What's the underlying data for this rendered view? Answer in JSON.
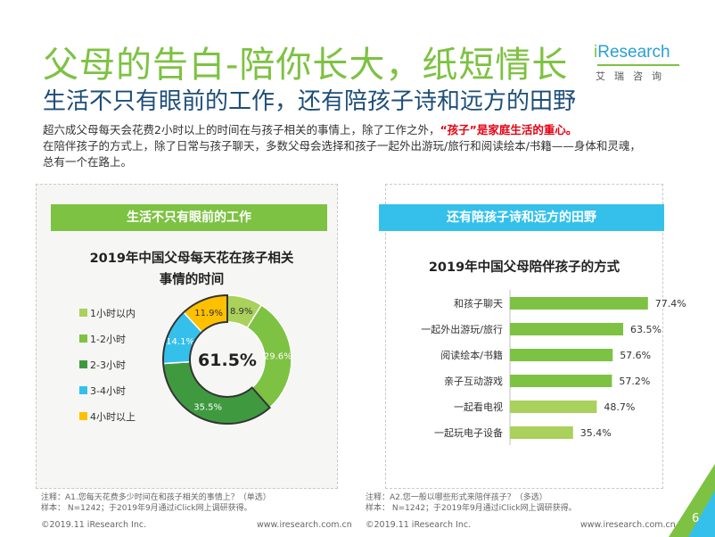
{
  "header": {
    "title": "父母的告白-陪你长大，纸短情长",
    "subtitle": "生活不只有眼前的工作，还有陪孩子诗和远方的田野"
  },
  "logo": {
    "name_i": "i",
    "name_rest": "Research",
    "name_cn": "艾瑞咨询"
  },
  "intro": {
    "line1_text": "超六成父母每天会花费2小时以上的时间在与孩子相关的事情上，除了工作之外，",
    "line1_highlight": "“孩子”是家庭生活的重心。",
    "line2": "在陪伴孩子的方式上，除了日常与孩子聊天，多数父母会选择和孩子一起外出游玩/旅行和阅读绘本/书籍——身体和灵魂，",
    "line3": "总有一个在路上。"
  },
  "panels": {
    "left_banner": "生活不只有眼前的工作",
    "right_banner": "还有陪孩子诗和远方的田野"
  },
  "colors": {
    "green": "#7dc242",
    "dark_green": "#3f9a3f",
    "blue": "#35c0ec",
    "yellow": "#ffc000",
    "light_green": "#a9d15b",
    "navy": "#1e4e79"
  },
  "chart_data": [
    {
      "type": "pie",
      "variant": "donut",
      "title_line1": "2019年中国父母每天花在孩子相关",
      "title_line2": "事情的时间",
      "center_label": "61.5%",
      "categories": [
        "1小时以内",
        "1-2小时",
        "2-3小时",
        "3-4小时",
        "4小时以上"
      ],
      "values": [
        8.9,
        29.6,
        35.5,
        14.1,
        11.9
      ],
      "value_labels": [
        "8.9%",
        "29.6%",
        "35.5%",
        "14.1%",
        "11.9%"
      ],
      "colors": [
        "#a9d15b",
        "#7dc242",
        "#3f9a3f",
        "#35c0ec",
        "#ffc000"
      ],
      "highlighted_categories": [
        "2-3小时",
        "3-4小时",
        "4小时以上"
      ],
      "legend_position": "left"
    },
    {
      "type": "bar",
      "orientation": "horizontal",
      "title": "2019年中国父母陪伴孩子的方式",
      "categories": [
        "和孩子聊天",
        "一起外出游玩/旅行",
        "阅读绘本/书籍",
        "亲子互动游戏",
        "一起看电视",
        "一起玩电子设备"
      ],
      "values": [
        77.4,
        63.5,
        57.6,
        57.2,
        48.7,
        35.4
      ],
      "value_labels": [
        "77.4%",
        "63.5%",
        "57.6%",
        "57.2%",
        "48.7%",
        "35.4%"
      ],
      "xlim": [
        0,
        100
      ],
      "colors": [
        "#7dc242",
        "#7dc242",
        "#7dc242",
        "#7dc242",
        "#a9d15b",
        "#a9d15b"
      ]
    }
  ],
  "footnotes": {
    "left_line1": "注释：A1.您每天花费多少时间在和孩子相关的事情上？（单选）",
    "left_line2": "样本： N=1242；于2019年9月通过iClick网上调研获得。",
    "right_line1": "注释：A2.您一般以哪些形式来陪伴孩子？（多选）",
    "right_line2": "样本： N=1242；于2019年9月通过iClick网上调研获得。"
  },
  "footer": {
    "copyright": "©2019.11 iResearch Inc.",
    "url": "www.iresearch.com.cn",
    "page": "6"
  }
}
